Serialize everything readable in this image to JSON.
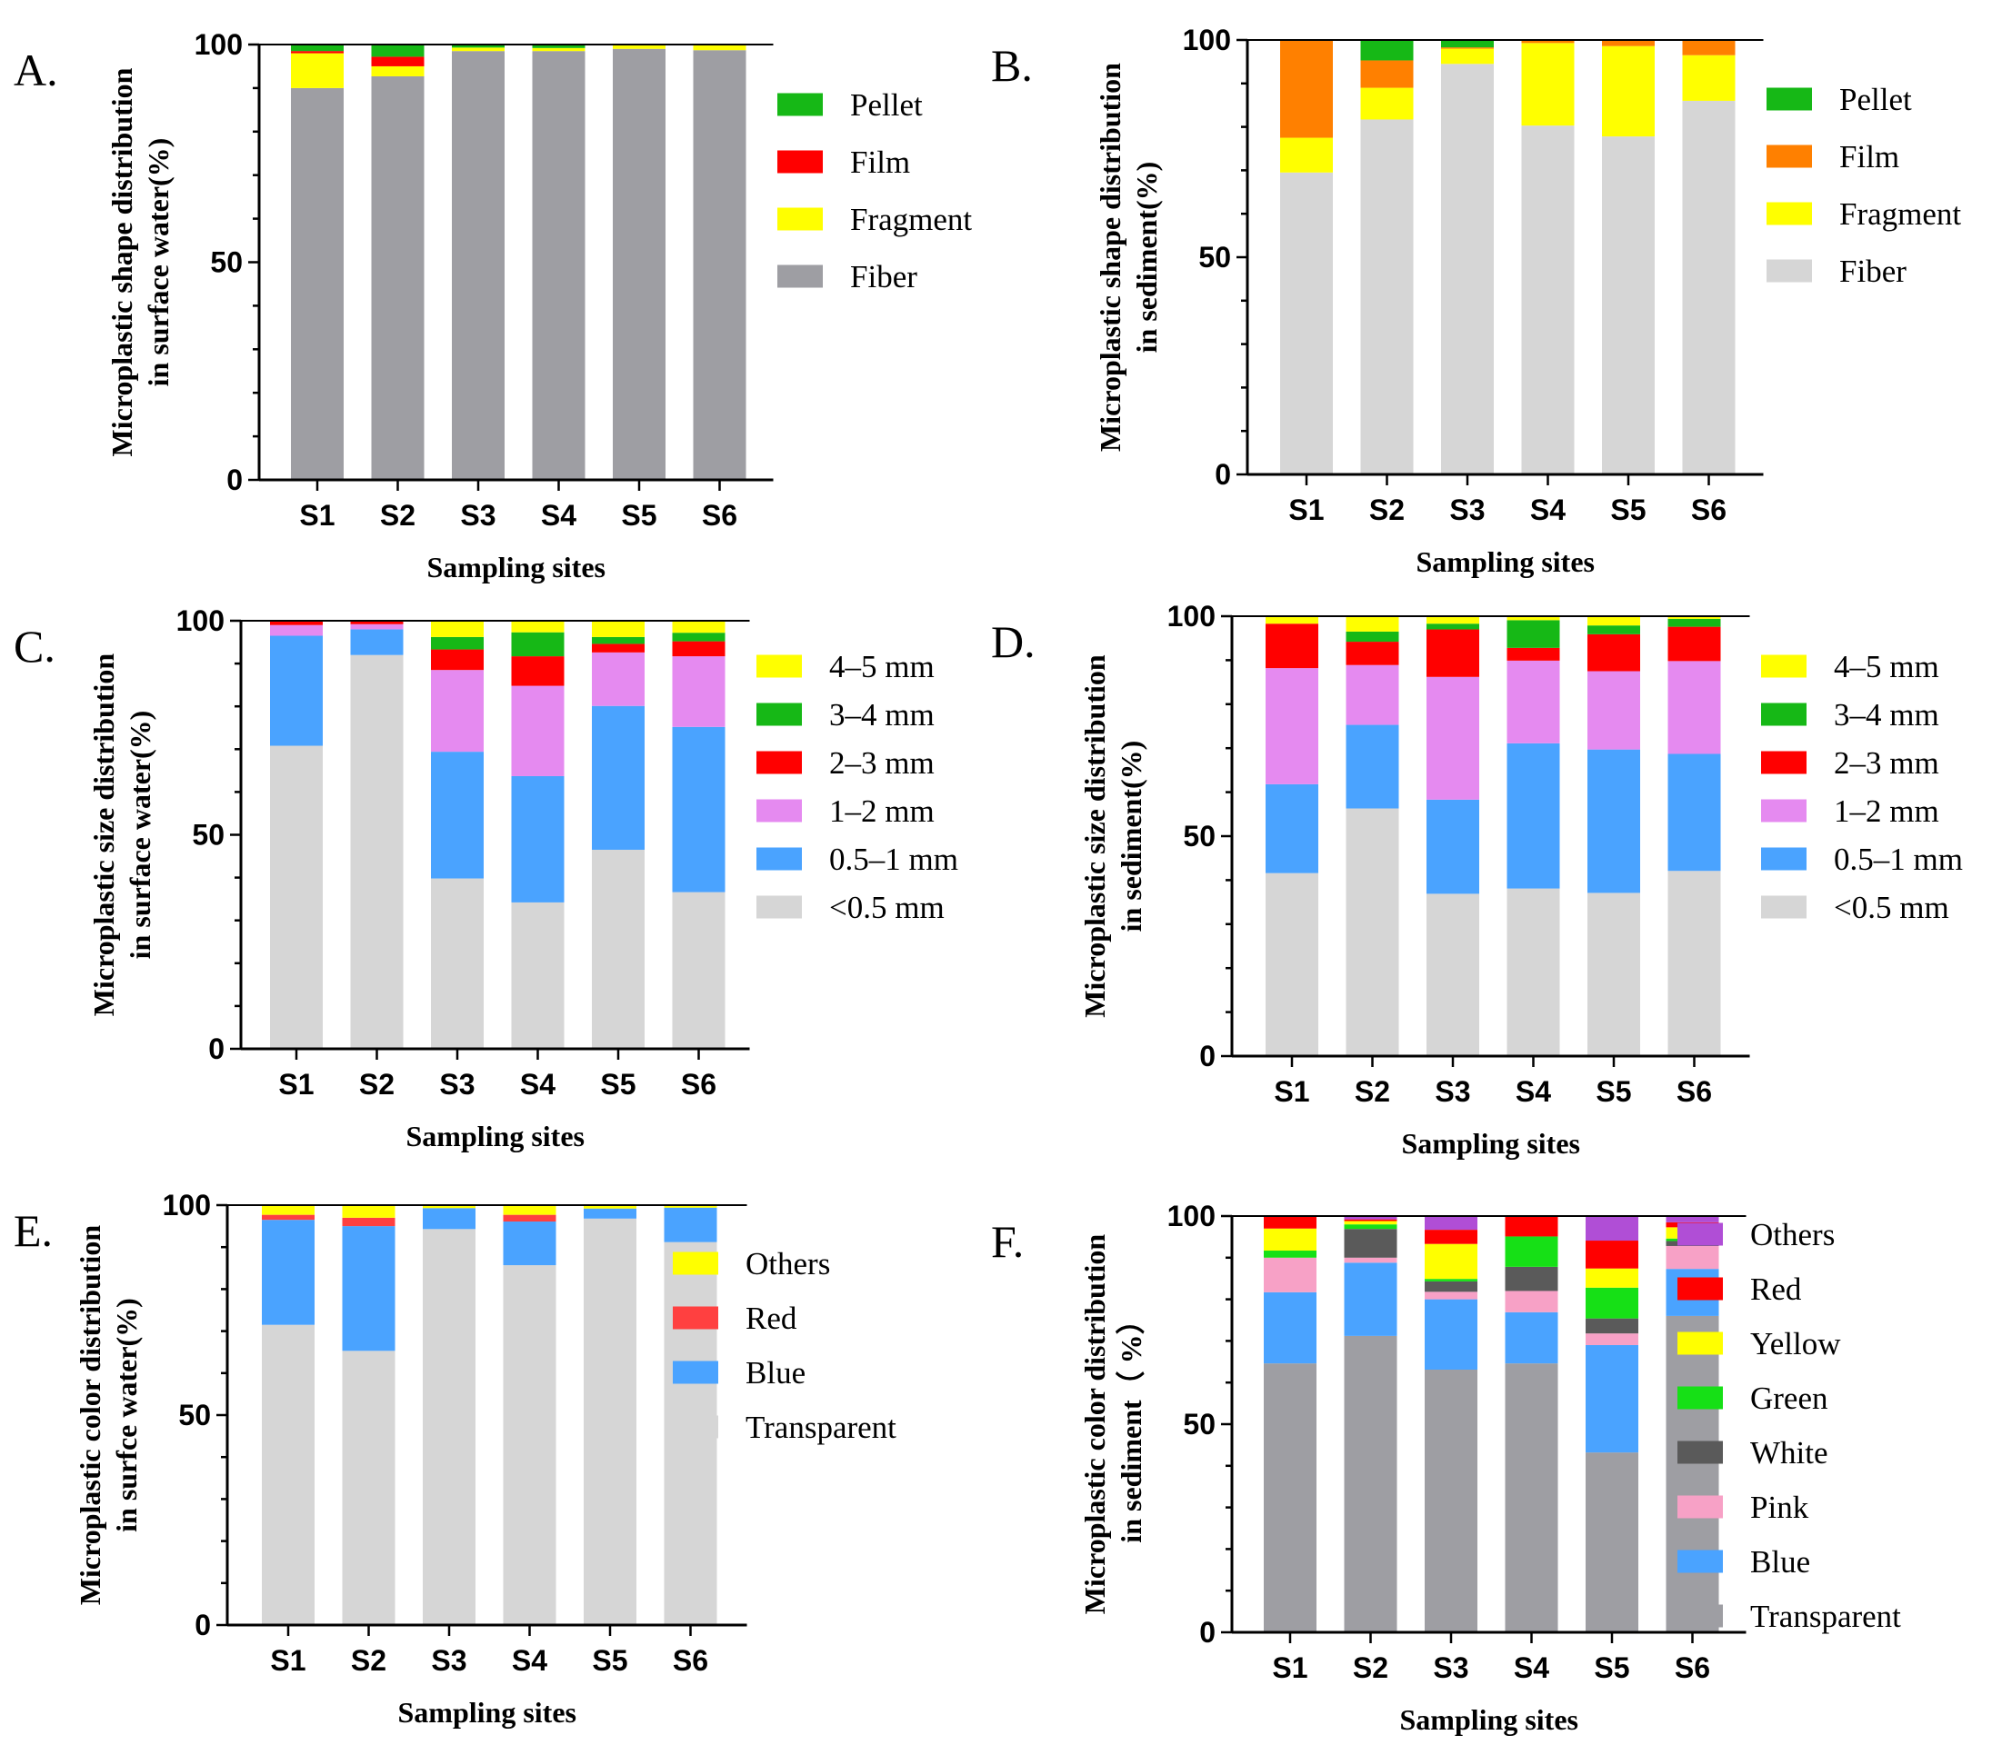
{
  "chart_data": [
    {
      "panel": "A.",
      "type": "bar",
      "stacked": true,
      "ylabel": [
        "Microplastic shape distribution",
        "in surface water(%)"
      ],
      "xlabel": "Sampling sites",
      "categories": [
        "S1",
        "S2",
        "S3",
        "S4",
        "S5",
        "S6"
      ],
      "ylim": [
        0,
        100
      ],
      "yticks": [
        "0",
        "50",
        "100"
      ],
      "legend": "right",
      "series": [
        {
          "name": "Fiber",
          "color": "#9e9ea3",
          "values": [
            90,
            92.7,
            98.5,
            98.5,
            99,
            98.7
          ]
        },
        {
          "name": "Fragment",
          "color": "#ffff00",
          "values": [
            8,
            2.3,
            0.8,
            0.7,
            0.8,
            1.1
          ]
        },
        {
          "name": "Film",
          "color": "#ff0000",
          "values": [
            0.5,
            2.2,
            0,
            0,
            0,
            0
          ]
        },
        {
          "name": "Pellet",
          "color": "#16b816",
          "values": [
            1.5,
            2.8,
            0.7,
            0.8,
            0.2,
            0.2
          ]
        }
      ]
    },
    {
      "panel": "B.",
      "type": "bar",
      "stacked": true,
      "ylabel": [
        "Microplastic shape distribution",
        "in sediment(%)"
      ],
      "xlabel": "Sampling sites",
      "categories": [
        "S1",
        "S2",
        "S3",
        "S4",
        "S5",
        "S6"
      ],
      "ylim": [
        0,
        100
      ],
      "yticks": [
        "0",
        "50",
        "100"
      ],
      "legend": "right",
      "series": [
        {
          "name": "Fiber",
          "color": "#d6d6d6",
          "values": [
            69.5,
            81.7,
            94.5,
            80.3,
            77.8,
            86
          ]
        },
        {
          "name": "Fragment",
          "color": "#ffff00",
          "values": [
            8,
            7.3,
            3.5,
            19,
            20.8,
            10.5
          ]
        },
        {
          "name": "Film",
          "color": "#ff8000",
          "values": [
            22.5,
            6.3,
            0.3,
            0.7,
            1.4,
            3.5
          ]
        },
        {
          "name": "Pellet",
          "color": "#16b816",
          "values": [
            0,
            4.7,
            1.7,
            0,
            0,
            0
          ]
        }
      ]
    },
    {
      "panel": "C.",
      "type": "bar",
      "stacked": true,
      "ylabel": [
        "Microplastic size distribution",
        "in surface water(%)"
      ],
      "xlabel": "Sampling sites",
      "categories": [
        "S1",
        "S2",
        "S3",
        "S4",
        "S5",
        "S6"
      ],
      "ylim": [
        0,
        100
      ],
      "yticks": [
        "0",
        "50",
        "100"
      ],
      "legend": "right",
      "series": [
        {
          "name": "<0.5 mm",
          "color": "#d6d6d6",
          "values": [
            70.8,
            92,
            39.8,
            34.2,
            46.5,
            36.6
          ]
        },
        {
          "name": "0.5–1 mm",
          "color": "#4aa3ff",
          "values": [
            25.7,
            6,
            29.6,
            29.5,
            33.6,
            38.6
          ]
        },
        {
          "name": "1–2 mm",
          "color": "#e58af0",
          "values": [
            2.5,
            1.2,
            19.1,
            21.1,
            12.5,
            16.5
          ]
        },
        {
          "name": "2–3 mm",
          "color": "#ff0000",
          "values": [
            1,
            0.8,
            4.8,
            6.9,
            2,
            3.5
          ]
        },
        {
          "name": "3–4 mm",
          "color": "#16b816",
          "values": [
            0,
            0,
            2.9,
            5.6,
            1.6,
            2
          ]
        },
        {
          "name": "4–5 mm",
          "color": "#ffff00",
          "values": [
            0,
            0,
            3.8,
            2.7,
            3.8,
            2.8
          ]
        }
      ]
    },
    {
      "panel": "D.",
      "type": "bar",
      "stacked": true,
      "ylabel": [
        "Microplastic size distribution",
        "in sediment(%)"
      ],
      "xlabel": "Sampling sites",
      "categories": [
        "S1",
        "S2",
        "S3",
        "S4",
        "S5",
        "S6"
      ],
      "ylim": [
        0,
        100
      ],
      "yticks": [
        "0",
        "50",
        "100"
      ],
      "legend": "right",
      "series": [
        {
          "name": "<0.5 mm",
          "color": "#d6d6d6",
          "values": [
            41.6,
            56.3,
            36.9,
            38.1,
            37.1,
            42.1
          ]
        },
        {
          "name": "0.5–1 mm",
          "color": "#4aa3ff",
          "values": [
            20.2,
            19,
            21.4,
            33,
            32.6,
            26.6
          ]
        },
        {
          "name": "1–2 mm",
          "color": "#e58af0",
          "values": [
            26.4,
            13.6,
            27.9,
            18.8,
            17.8,
            21.1
          ]
        },
        {
          "name": "2–3 mm",
          "color": "#ff0000",
          "values": [
            10.1,
            5.3,
            10.8,
            2.9,
            8.4,
            7.8
          ]
        },
        {
          "name": "3–4 mm",
          "color": "#16b816",
          "values": [
            0,
            2.3,
            1.3,
            6.3,
            2,
            1.8
          ]
        },
        {
          "name": "4–5 mm",
          "color": "#ffff00",
          "values": [
            1.7,
            3.5,
            1.7,
            0.9,
            2.1,
            0.6
          ]
        }
      ]
    },
    {
      "panel": "E.",
      "type": "bar",
      "stacked": true,
      "ylabel": [
        "Microplastic color distribution",
        "in surfce water(%)"
      ],
      "xlabel": "Sampling sites",
      "categories": [
        "S1",
        "S2",
        "S3",
        "S4",
        "S5",
        "S6"
      ],
      "ylim": [
        0,
        100
      ],
      "yticks": [
        "0",
        "50",
        "100"
      ],
      "legend": "right",
      "series": [
        {
          "name": "Transparent",
          "color": "#d6d6d6",
          "values": [
            71.5,
            65.3,
            94.3,
            85.7,
            96.8,
            91.2
          ]
        },
        {
          "name": "Blue",
          "color": "#4aa3ff",
          "values": [
            25,
            29.7,
            5,
            10.4,
            2.4,
            8.2
          ]
        },
        {
          "name": "Red",
          "color": "#ff4040",
          "values": [
            1.2,
            2,
            0,
            1.6,
            0,
            0
          ]
        },
        {
          "name": "Others",
          "color": "#ffff00",
          "values": [
            2.3,
            3,
            0.7,
            2.3,
            0.8,
            0.6
          ]
        }
      ]
    },
    {
      "panel": "F.",
      "type": "bar",
      "stacked": true,
      "ylabel": [
        "Microplastic color distribution",
        "in sediment（ %）"
      ],
      "xlabel": "Sampling sites",
      "categories": [
        "S1",
        "S2",
        "S3",
        "S4",
        "S5",
        "S6"
      ],
      "ylim": [
        0,
        100
      ],
      "yticks": [
        "0",
        "50",
        "100"
      ],
      "legend": "right",
      "series": [
        {
          "name": "Transparent",
          "color": "#9e9ea3",
          "values": [
            64.6,
            71.2,
            63.1,
            64.6,
            43.2,
            76
          ]
        },
        {
          "name": "Blue",
          "color": "#4aa3ff",
          "values": [
            17.1,
            17.6,
            16.9,
            12.3,
            25.8,
            11.3
          ]
        },
        {
          "name": "Pink",
          "color": "#f7a1c6",
          "values": [
            8.3,
            1.2,
            1.8,
            5.1,
            2.8,
            5.5
          ]
        },
        {
          "name": "White",
          "color": "#5a5a5a",
          "values": [
            0,
            6.9,
            2.5,
            5.8,
            3.6,
            1.2
          ]
        },
        {
          "name": "Green",
          "color": "#16e016",
          "values": [
            1.7,
            1.1,
            0.6,
            7.3,
            7.4,
            0.6
          ]
        },
        {
          "name": "Yellow",
          "color": "#ffff00",
          "values": [
            5.3,
            0.8,
            8.4,
            0,
            4.6,
            2.7
          ]
        },
        {
          "name": "Red",
          "color": "#ff0000",
          "values": [
            3,
            0.4,
            3.4,
            4.9,
            6.7,
            1.2
          ]
        },
        {
          "name": "Others",
          "color": "#b04ed6",
          "values": [
            0,
            0.8,
            3.3,
            0,
            5.9,
            1.5
          ]
        }
      ]
    }
  ]
}
